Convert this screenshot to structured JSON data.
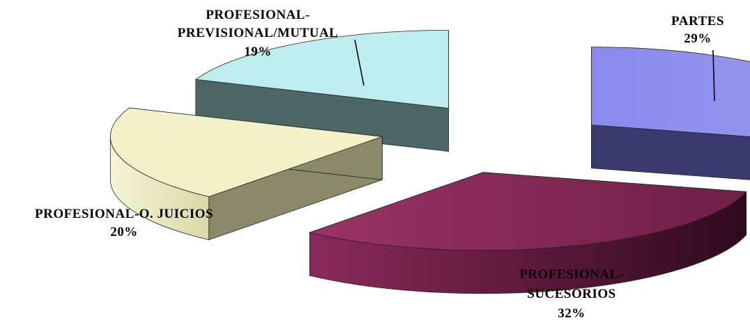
{
  "chart_data": {
    "type": "pie",
    "style": "3d-exploded",
    "legend": "none",
    "slices": [
      {
        "label": [
          "PARTES"
        ],
        "value": 29,
        "value_label": "29%",
        "color": "#8E8EEE"
      },
      {
        "label": [
          "PROFESIONAL-",
          "SUCESORIOS"
        ],
        "value": 32,
        "value_label": "32%",
        "color": "#8B2A5A"
      },
      {
        "label": [
          "PROFESIONAL-O. JUICIOS"
        ],
        "value": 20,
        "value_label": "20%",
        "color": "#F3F2C6"
      },
      {
        "label": [
          "PROFESIONAL-",
          "PREVISIONAL/MUTUAL"
        ],
        "value": 19,
        "value_label": "19%",
        "color": "#BDEDEE"
      }
    ]
  }
}
